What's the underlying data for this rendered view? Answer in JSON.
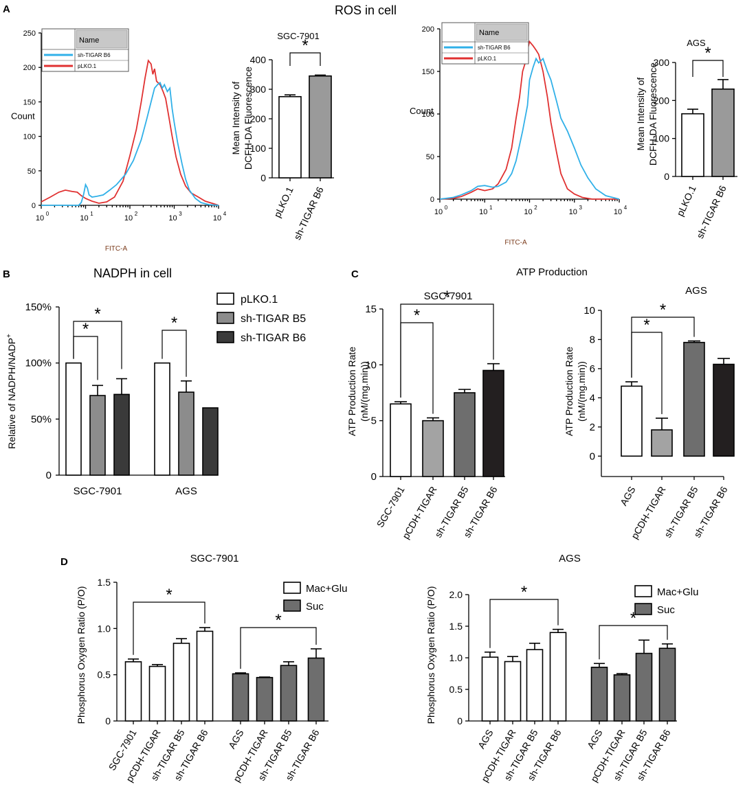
{
  "figure_title": "ROS in cell",
  "panel_letters": {
    "A": "A",
    "B": "B",
    "C": "C",
    "D": "D"
  },
  "colors": {
    "flow_red": "#e03030",
    "flow_blue": "#30b0e8",
    "white": "#ffffff",
    "gray_light": "#9a9a9a",
    "gray_mid": "#6e6e6e",
    "gray_dark": "#3a3a3a",
    "black_bar": "#231f20"
  },
  "chart_data": [
    {
      "id": "flow1",
      "type": "line",
      "title": "",
      "xlabel": "FITC-A",
      "ylabel": "Count",
      "xscale": "log",
      "xlim": [
        1,
        10000
      ],
      "ylim": [
        0,
        250
      ],
      "x_ticks": [
        "10",
        "10",
        "10",
        "10",
        "10"
      ],
      "x_tick_exponents": [
        "0",
        "1",
        "2",
        "3",
        "4"
      ],
      "y_ticks": [
        "0",
        "50",
        "100",
        "150",
        "200",
        "250"
      ],
      "legend": {
        "header": "Name",
        "items": [
          "sh-TIGAR B6",
          "pLKO.1"
        ]
      },
      "series": [
        {
          "name": "pLKO.1",
          "color": "#e03030",
          "x": [
            1,
            1.6,
            2.5,
            3.5,
            5,
            6.5,
            8,
            10,
            14,
            20,
            30,
            45,
            70,
            100,
            140,
            180,
            220,
            260,
            300,
            330,
            360,
            400,
            480,
            560,
            640,
            750,
            900,
            1100,
            1400,
            1800,
            2400,
            3500,
            5000,
            8000,
            10000
          ],
          "y": [
            5,
            12,
            19,
            22,
            20,
            19,
            14,
            10,
            6,
            3,
            5,
            12,
            35,
            72,
            110,
            150,
            185,
            210,
            205,
            190,
            198,
            180,
            175,
            165,
            155,
            130,
            100,
            70,
            45,
            28,
            18,
            12,
            6,
            2,
            0
          ]
        },
        {
          "name": "sh-TIGAR B6",
          "color": "#30b0e8",
          "x": [
            1,
            3,
            5,
            7,
            8,
            9,
            10,
            11,
            12,
            14,
            18,
            25,
            35,
            50,
            80,
            120,
            180,
            240,
            300,
            360,
            420,
            480,
            540,
            600,
            700,
            800,
            900,
            1000,
            1200,
            1500,
            1800,
            2200,
            3000,
            4000,
            6000,
            10000
          ],
          "y": [
            0,
            0,
            0,
            0,
            4,
            15,
            30,
            25,
            15,
            12,
            13,
            15,
            22,
            30,
            45,
            65,
            95,
            125,
            150,
            170,
            175,
            178,
            170,
            175,
            165,
            170,
            140,
            120,
            90,
            60,
            38,
            22,
            10,
            4,
            1,
            0
          ]
        }
      ]
    },
    {
      "id": "bar_a1",
      "type": "bar",
      "title": "SGC-7901",
      "ylabel": "Mean Intensity of DCFH-DA Fluorescence",
      "ylim": [
        0,
        400
      ],
      "y_ticks": [
        "0",
        "100",
        "200",
        "300",
        "400"
      ],
      "categories": [
        "pLKO.1",
        "sh-TIGAR B6"
      ],
      "values": [
        275,
        345
      ],
      "errors": [
        6,
        3
      ],
      "significance": [
        {
          "from": 0,
          "to": 1,
          "label": "*"
        }
      ]
    },
    {
      "id": "flow2",
      "type": "line",
      "title": "",
      "xlabel": "FITC-A",
      "ylabel": "Count",
      "xscale": "log",
      "xlim": [
        1,
        10000
      ],
      "ylim": [
        0,
        200
      ],
      "x_ticks": [
        "10",
        "10",
        "10",
        "10",
        "10"
      ],
      "x_tick_exponents": [
        "0",
        "1",
        "2",
        "3",
        "4"
      ],
      "y_ticks": [
        "0",
        "50",
        "100",
        "150",
        "200"
      ],
      "legend": {
        "header": "Name",
        "items": [
          "sh-TIGAR B6",
          "pLKO.1"
        ]
      },
      "series": [
        {
          "name": "pLKO.1",
          "color": "#e03030",
          "x": [
            1,
            2,
            3,
            5,
            7,
            10,
            15,
            20,
            30,
            40,
            50,
            60,
            70,
            80,
            90,
            100,
            120,
            140,
            160,
            200,
            250,
            300,
            400,
            500,
            700,
            1000,
            1500,
            2500,
            5000,
            10000
          ],
          "y": [
            0,
            1,
            3,
            8,
            12,
            10,
            12,
            18,
            35,
            60,
            95,
            120,
            150,
            160,
            175,
            185,
            180,
            175,
            170,
            150,
            120,
            90,
            55,
            30,
            12,
            6,
            2,
            0,
            0,
            0
          ]
        },
        {
          "name": "sh-TIGAR B6",
          "color": "#30b0e8",
          "x": [
            1,
            2,
            3,
            5,
            7,
            10,
            15,
            20,
            30,
            40,
            50,
            70,
            90,
            100,
            120,
            140,
            160,
            200,
            250,
            300,
            400,
            500,
            700,
            1000,
            1400,
            2000,
            3000,
            5000,
            10000
          ],
          "y": [
            0,
            2,
            5,
            10,
            15,
            16,
            14,
            15,
            20,
            30,
            45,
            80,
            110,
            140,
            155,
            165,
            160,
            165,
            150,
            140,
            115,
            95,
            80,
            60,
            40,
            25,
            12,
            4,
            0
          ]
        }
      ]
    },
    {
      "id": "bar_a2",
      "type": "bar",
      "title": "AGS",
      "ylabel": "Mean Intensity of DCFH-DA Fluorescence",
      "ylim": [
        0,
        300
      ],
      "y_ticks": [
        "0",
        "100",
        "200",
        "300"
      ],
      "categories": [
        "pLKO.1",
        "sh-TIGAR B6"
      ],
      "values": [
        165,
        230
      ],
      "errors": [
        12,
        25
      ],
      "significance": [
        {
          "from": 0,
          "to": 1,
          "label": "*"
        }
      ]
    },
    {
      "id": "bar_b",
      "type": "bar",
      "title": "NADPH in cell",
      "ylabel": "Relative of NADPH/NADP",
      "ylabel_superscript": "+",
      "ylim": [
        0,
        1.5
      ],
      "y_ticks": [
        "0",
        "50%",
        "100%",
        "150%"
      ],
      "categories": [
        "SGC-7901",
        "AGS"
      ],
      "series": [
        {
          "name": "pLKO.1",
          "color": "#ffffff",
          "values": [
            1.0,
            1.0
          ],
          "errors": [
            0,
            0
          ]
        },
        {
          "name": "sh-TIGAR B5",
          "color": "#8c8c8c",
          "values": [
            0.71,
            0.74
          ],
          "errors": [
            0.09,
            0.1
          ]
        },
        {
          "name": "sh-TIGAR B6",
          "color": "#3a3a3a",
          "values": [
            0.72,
            0.6
          ],
          "errors": [
            0.14,
            0
          ]
        }
      ],
      "legend": [
        "pLKO.1",
        "sh-TIGAR B5",
        "sh-TIGAR B6"
      ],
      "significance": [
        {
          "group": 0,
          "from": 0,
          "to": 1,
          "label": "*"
        },
        {
          "group": 0,
          "from": 0,
          "to": 2,
          "label": "*"
        },
        {
          "group": 1,
          "from": 0,
          "to": 1,
          "label": "*"
        }
      ]
    },
    {
      "id": "bar_c1",
      "type": "bar",
      "title": "SGC-7901",
      "group_title": "ATP Production",
      "ylabel": "ATP Production Rate (nM/(mg.min))",
      "ylim": [
        0,
        15
      ],
      "y_ticks": [
        "0",
        "5",
        "10",
        "15"
      ],
      "categories": [
        "SGC-7901",
        "pCDH-TIGAR",
        "sh-TIGAR B5",
        "sh-TIGAR B6"
      ],
      "values": [
        6.5,
        5.0,
        7.5,
        9.5
      ],
      "errors": [
        0.2,
        0.25,
        0.3,
        0.6
      ],
      "bar_colors": [
        "#ffffff",
        "#a3a3a3",
        "#6e6e6e",
        "#231f20"
      ],
      "significance": [
        {
          "from": 0,
          "to": 1,
          "label": "*"
        },
        {
          "from": 0,
          "to": 3,
          "label": "*"
        }
      ]
    },
    {
      "id": "bar_c2",
      "type": "bar",
      "title": "AGS",
      "ylabel": "ATP Production Rate (nM/(mg.min))",
      "ylim": [
        -1.4,
        10
      ],
      "y_ticks": [
        "0",
        "2",
        "4",
        "6",
        "8",
        "10"
      ],
      "categories": [
        "AGS",
        "pCDH-TIGAR",
        "sh-TIGAR B5",
        "sh-TIGAR B6"
      ],
      "values": [
        4.8,
        1.8,
        7.8,
        6.3
      ],
      "errors": [
        0.3,
        0.8,
        0.1,
        0.4
      ],
      "bar_colors": [
        "#ffffff",
        "#a3a3a3",
        "#6e6e6e",
        "#231f20"
      ],
      "significance": [
        {
          "from": 0,
          "to": 1,
          "label": "*"
        },
        {
          "from": 0,
          "to": 2,
          "label": "*"
        }
      ]
    },
    {
      "id": "bar_d1",
      "type": "bar",
      "title": "SGC-7901",
      "ylabel": "Phosphorus Oxygen Ratio (P/O)",
      "ylim": [
        0,
        1.5
      ],
      "y_ticks": [
        "0",
        "0.5",
        "1.0",
        "1.5"
      ],
      "categories": [
        "SGC-7901",
        "pCDH-TIGAR",
        "sh-TIGAR B5",
        "sh-TIGAR B6",
        "AGS",
        "pCDH-TIGAR",
        "sh-TIGAR B5",
        "sh-TIGAR B6"
      ],
      "values": [
        0.64,
        0.59,
        0.84,
        0.97,
        0.51,
        0.47,
        0.6,
        0.68
      ],
      "errors": [
        0.03,
        0.02,
        0.05,
        0.04,
        0.01,
        0.005,
        0.04,
        0.1
      ],
      "bar_colors": [
        "#ffffff",
        "#ffffff",
        "#ffffff",
        "#ffffff",
        "#6e6e6e",
        "#6e6e6e",
        "#6e6e6e",
        "#6e6e6e"
      ],
      "legend": [
        "Mac+Glu",
        "Suc"
      ],
      "significance": [
        {
          "from": 0,
          "to": 3,
          "label": "*"
        },
        {
          "from": 4,
          "to": 7,
          "label": "*"
        }
      ]
    },
    {
      "id": "bar_d2",
      "type": "bar",
      "title": "AGS",
      "ylabel": "Phosphorus Oxygen Ratio (P/O)",
      "ylim": [
        0,
        2.0
      ],
      "y_ticks": [
        "0",
        "0.5",
        "1.0",
        "1.5",
        "2.0"
      ],
      "categories": [
        "AGS",
        "pCDH-TIGAR",
        "sh-TIGAR B5",
        "sh-TIGAR B6",
        "AGS",
        "pCDH-TIGAR",
        "sh-TIGAR B5",
        "sh-TIGAR B6"
      ],
      "values": [
        1.01,
        0.94,
        1.13,
        1.4,
        0.85,
        0.73,
        1.07,
        1.15
      ],
      "errors": [
        0.08,
        0.08,
        0.1,
        0.05,
        0.06,
        0.02,
        0.21,
        0.07
      ],
      "bar_colors": [
        "#ffffff",
        "#ffffff",
        "#ffffff",
        "#ffffff",
        "#6e6e6e",
        "#6e6e6e",
        "#6e6e6e",
        "#6e6e6e"
      ],
      "legend": [
        "Mac+Glu",
        "Suc"
      ],
      "significance": [
        {
          "from": 0,
          "to": 3,
          "label": "*"
        },
        {
          "from": 4,
          "to": 7,
          "label": "*"
        }
      ]
    }
  ]
}
